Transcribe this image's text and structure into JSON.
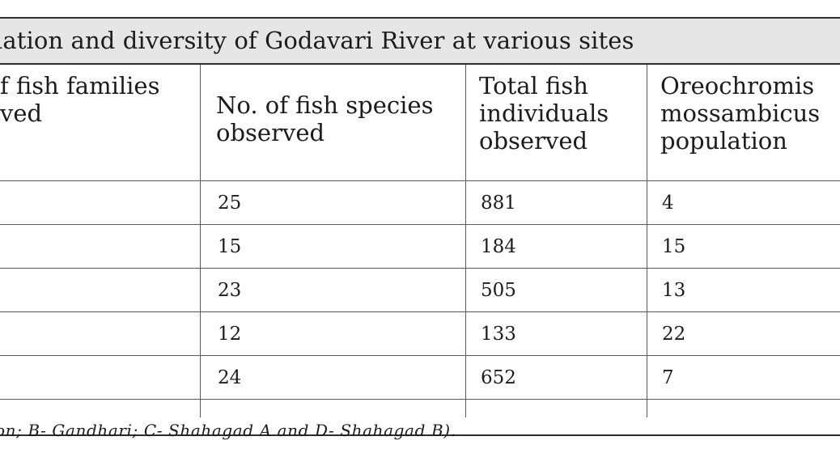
{
  "table": {
    "caption": "lation and diversity of Godavari River at various sites",
    "headers": [
      {
        "line1": "f fish families",
        "line2": "ved",
        "line3": ""
      },
      {
        "line1": "No. of fish species",
        "line2": "observed",
        "line3": ""
      },
      {
        "line1": "Total fish",
        "line2": "individuals",
        "line3": "observed"
      },
      {
        "line1": "Oreochromis",
        "line2": "mossambicus",
        "line3": "population"
      }
    ],
    "rows": [
      {
        "species": "25",
        "individuals": "881",
        "oreochromis": "4"
      },
      {
        "species": "15",
        "individuals": "184",
        "oreochromis": "15"
      },
      {
        "species": "23",
        "individuals": "505",
        "oreochromis": "13"
      },
      {
        "species": "12",
        "individuals": "133",
        "oreochromis": "22"
      },
      {
        "species": "24",
        "individuals": "652",
        "oreochromis": "7"
      }
    ],
    "footnote": "on; B- Gandhari; C- Shahagad A and D- Shahagad B)."
  }
}
